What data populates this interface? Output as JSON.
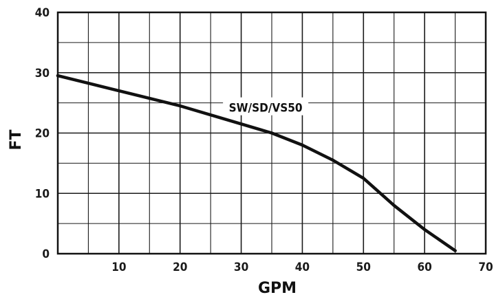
{
  "chart_data": {
    "type": "line",
    "title": "",
    "xlabel": "GPM",
    "ylabel": "FT",
    "xlim": [
      0,
      70
    ],
    "ylim": [
      0,
      40
    ],
    "x_ticks": [
      "10",
      "20",
      "30",
      "40",
      "50",
      "60",
      "70"
    ],
    "y_ticks": [
      "0",
      "10",
      "20",
      "30",
      "40"
    ],
    "grid": true,
    "colors": {
      "line": "#111111",
      "grid": "#1a1a1a",
      "background": "#ffffff"
    },
    "series": [
      {
        "name": "SW/SD/VS50",
        "x": [
          0,
          10,
          20,
          30,
          35,
          40,
          45,
          50,
          55,
          60,
          65
        ],
        "y": [
          29.5,
          27,
          24.5,
          21.5,
          20,
          18,
          15.5,
          12.5,
          8,
          4,
          0.5
        ]
      }
    ]
  }
}
